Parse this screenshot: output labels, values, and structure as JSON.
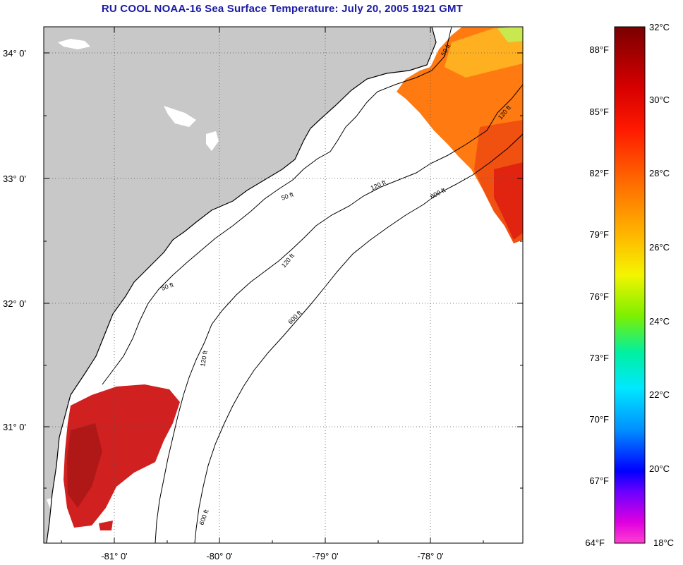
{
  "title": "RU COOL  NOAA-16  Sea Surface Temperature:  July 20, 2005 1921 GMT",
  "map": {
    "lat_ticks": [
      "34° 0'",
      "33° 0'",
      "32° 0'",
      "31° 0'"
    ],
    "lon_ticks": [
      "-81° 0'",
      "-80° 0'",
      "-79° 0'",
      "-78° 0'"
    ],
    "contours": [
      "50 ft",
      "120 ft",
      "600 ft"
    ],
    "colors": {
      "land": "#c8c8c8",
      "ocean": "#ffffff"
    }
  },
  "colorbar": {
    "fahrenheit": [
      "88°F",
      "85°F",
      "82°F",
      "79°F",
      "76°F",
      "73°F",
      "70°F",
      "67°F",
      "64°F"
    ],
    "celsius": [
      "32°C",
      "30°C",
      "28°C",
      "26°C",
      "24°C",
      "22°C",
      "20°C",
      "18°C"
    ],
    "range_c": [
      18,
      32
    ]
  }
}
